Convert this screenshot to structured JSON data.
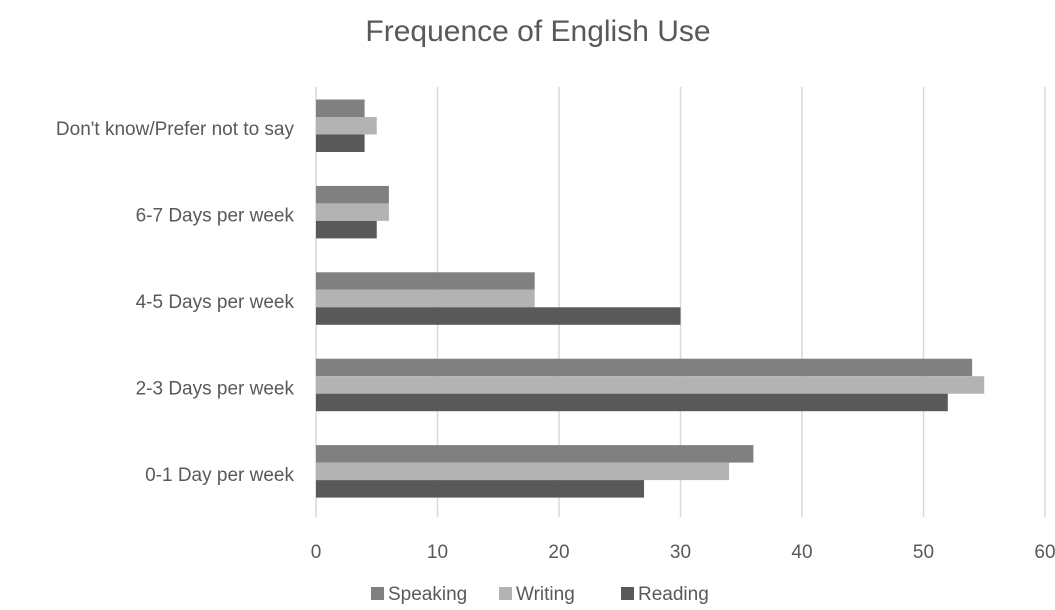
{
  "chart_data": {
    "type": "bar",
    "orientation": "horizontal",
    "title": "Frequence of English Use",
    "xlabel": "",
    "ylabel": "",
    "categories": [
      "0-1 Day per week",
      "2-3 Days per week",
      "4-5 Days per week",
      "6-7 Days per week",
      "Don't know/Prefer not to say"
    ],
    "series": [
      {
        "name": "Speaking",
        "color": "#808080",
        "values": [
          36,
          54,
          18,
          6,
          4
        ]
      },
      {
        "name": "Writing",
        "color": "#b3b3b3",
        "values": [
          34,
          55,
          18,
          6,
          5
        ]
      },
      {
        "name": "Reading",
        "color": "#595959",
        "values": [
          27,
          52,
          30,
          5,
          4
        ]
      }
    ],
    "xlim": [
      0,
      60
    ],
    "xticks": [
      "0",
      "10",
      "20",
      "30",
      "40",
      "50",
      "60"
    ],
    "grid": true,
    "legend_position": "bottom"
  }
}
